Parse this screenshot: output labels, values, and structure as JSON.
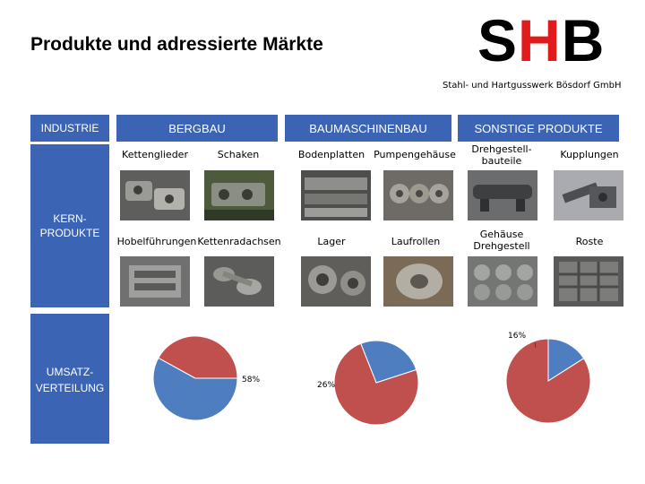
{
  "header": {
    "title": "Produkte und adressierte Märkte",
    "logo": {
      "s": "S",
      "h": "H",
      "b": "B"
    },
    "company": "Stahl- und Hartgusswerk Bösdorf GmbH"
  },
  "sidebar": {
    "industrie": "INDUSTRIE",
    "kern_line1": "KERN-",
    "kern_line2": "PRODUKTE",
    "umsatz_line1": "UMSATZ-",
    "umsatz_line2": "VERTEILUNG"
  },
  "columns": {
    "bergbau": "BERGBAU",
    "baumaschinenbau": "BAUMASCHINENBAU",
    "sonstige": "SONSTIGE PRODUKTE"
  },
  "products": {
    "kettenglieder": "Kettenglieder",
    "schaken": "Schaken",
    "bodenplatten": "Bodenplatten",
    "pumpengehaeuse": "Pumpengehäuse",
    "drehgestell_line1": "Drehgestell-",
    "drehgestell_line2": "bauteile",
    "kupplungen": "Kupplungen",
    "hobelfuehrungen": "Hobelführungen",
    "kettenradachsen": "Kettenradachsen",
    "lager": "Lager",
    "laufrollen": "Laufrollen",
    "gehaeuse_line1": "Gehäuse",
    "gehaeuse_line2": "Drehgestell",
    "roste": "Roste"
  },
  "colors": {
    "accent": "#3b64b4",
    "logo_red": "#e11b1b",
    "pie_blue": "#4f7ec0",
    "pie_red": "#c0504d"
  },
  "chart_data": [
    {
      "type": "pie",
      "segment": "BERGBAU",
      "slices": [
        {
          "color": "#4f7ec0",
          "value": 58,
          "label": "58%"
        },
        {
          "color": "#c0504d",
          "value": 42,
          "label": ""
        }
      ]
    },
    {
      "type": "pie",
      "segment": "BAUMASCHINENBAU",
      "slices": [
        {
          "color": "#4f7ec0",
          "value": 26,
          "label": "26%"
        },
        {
          "color": "#c0504d",
          "value": 74,
          "label": ""
        }
      ]
    },
    {
      "type": "pie",
      "segment": "SONSTIGE PRODUKTE",
      "slices": [
        {
          "color": "#4f7ec0",
          "value": 16,
          "label": "16%"
        },
        {
          "color": "#c0504d",
          "value": 84,
          "label": ""
        }
      ]
    }
  ]
}
